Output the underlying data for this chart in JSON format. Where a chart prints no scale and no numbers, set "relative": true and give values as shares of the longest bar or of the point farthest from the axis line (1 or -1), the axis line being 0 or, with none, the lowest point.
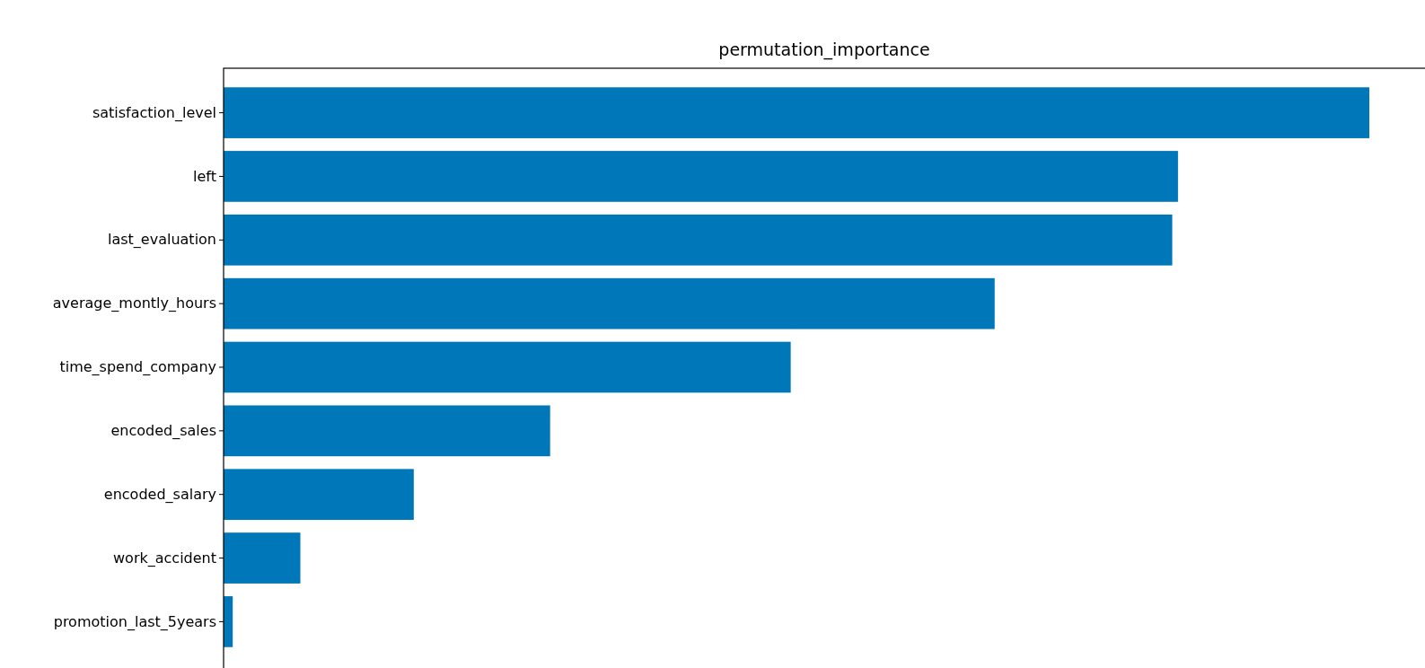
{
  "chart_data": {
    "type": "bar",
    "orientation": "horizontal",
    "relative": true,
    "title": "permutation_importance",
    "categories": [
      "satisfaction_level",
      "left",
      "last_evaluation",
      "average_montly_hours",
      "time_spend_company",
      "encoded_sales",
      "encoded_salary",
      "work_accident",
      "promotion_last_5years"
    ],
    "values": [
      1,
      0.833,
      0.828,
      0.673,
      0.495,
      0.285,
      0.166,
      0.067,
      0.008
    ],
    "color": "#0077b9"
  }
}
